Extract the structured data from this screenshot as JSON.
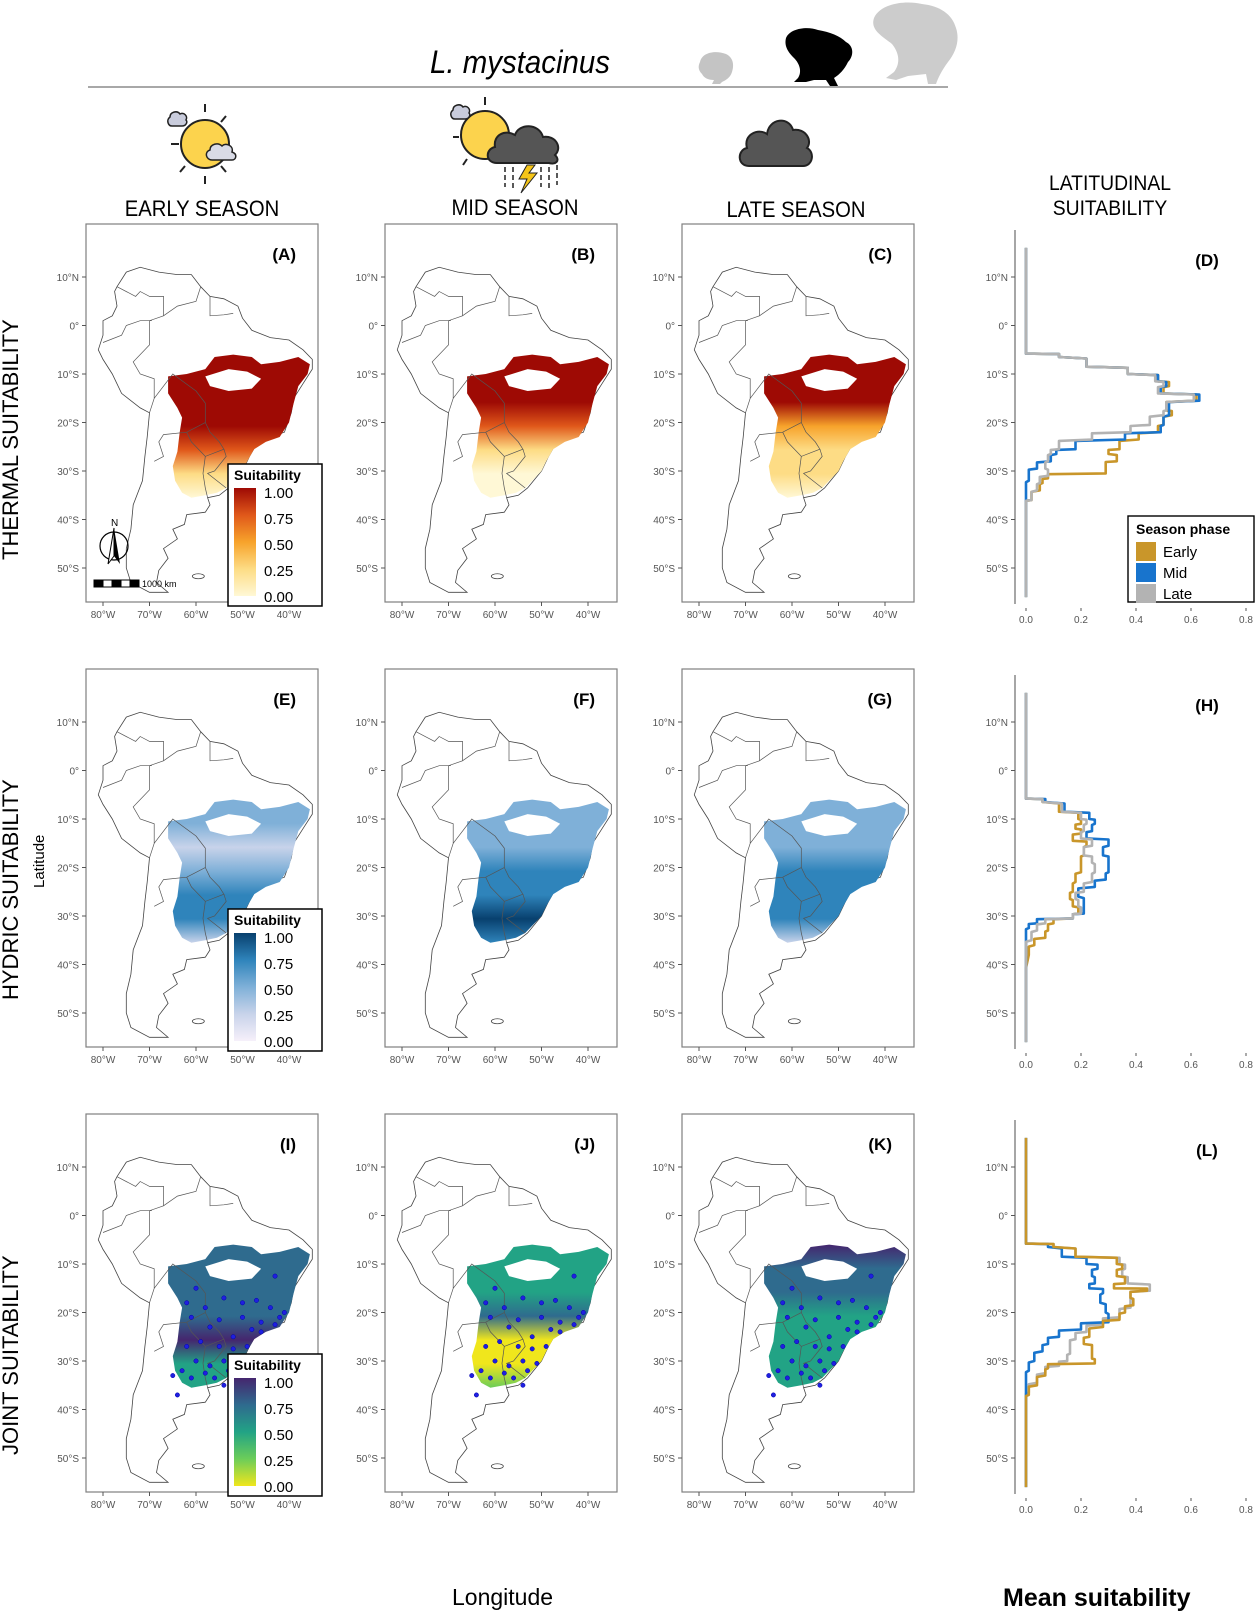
{
  "header": {
    "species": "L. mystacinus",
    "frog_icons": [
      "frog-small-gray",
      "frog-medium-black",
      "frog-large-gray"
    ],
    "columns": [
      {
        "title": "EARLY SEASON",
        "icon": "sun-cloud-icon"
      },
      {
        "title": "MID SEASON",
        "icon": "sun-storm-cloud-icon"
      },
      {
        "title": "LATE SEASON",
        "icon": "dark-cloud-icon"
      }
    ],
    "lat_column_title_line1": "LATITUDINAL",
    "lat_column_title_line2": "SUITABILITY"
  },
  "rows": [
    {
      "label": "THERMAL SUITABILITY",
      "palette": "thermal"
    },
    {
      "label": "HYDRIC SUITABILITY",
      "palette": "hydric"
    },
    {
      "label": "JOINT SUITABILITY",
      "palette": "joint"
    }
  ],
  "axes": {
    "latitude_title": "Latitude",
    "longitude_title": "Longitude",
    "mean_suitability_title": "Mean suitability",
    "lat_ticks": [
      "10°N",
      "0°",
      "10°S",
      "20°S",
      "30°S",
      "40°S",
      "50°S"
    ],
    "lon_ticks": [
      "80°W",
      "70°W",
      "60°W",
      "50°W",
      "40°W"
    ],
    "suit_ticks": [
      "0.0",
      "0.2",
      "0.4",
      "0.6",
      "0.8"
    ]
  },
  "map_panels": [
    {
      "id": "A",
      "label": "(A)",
      "row": 0,
      "col": 0,
      "has_legend": true,
      "has_compass": true
    },
    {
      "id": "B",
      "label": "(B)",
      "row": 0,
      "col": 1
    },
    {
      "id": "C",
      "label": "(C)",
      "row": 0,
      "col": 2
    },
    {
      "id": "E",
      "label": "(E)",
      "row": 1,
      "col": 0,
      "has_legend": true
    },
    {
      "id": "F",
      "label": "(F)",
      "row": 1,
      "col": 1
    },
    {
      "id": "G",
      "label": "(G)",
      "row": 1,
      "col": 2
    },
    {
      "id": "I",
      "label": "(I)",
      "row": 2,
      "col": 0,
      "has_legend": true,
      "has_points": true
    },
    {
      "id": "J",
      "label": "(J)",
      "row": 2,
      "col": 1,
      "has_points": true
    },
    {
      "id": "K",
      "label": "(K)",
      "row": 2,
      "col": 2,
      "has_points": true
    }
  ],
  "legend": {
    "title": "Suitability",
    "ticks": [
      "1.00",
      "0.75",
      "0.50",
      "0.25",
      "0.00"
    ]
  },
  "scale_bar": {
    "label": "1000 km",
    "north": "N"
  },
  "palettes": {
    "thermal": [
      "#fff8d6",
      "#fddc85",
      "#f7a32b",
      "#e0581a",
      "#9e0a04"
    ],
    "hydric": [
      "#f6f0fa",
      "#c8d3ea",
      "#7fb0d8",
      "#2f84bb",
      "#08406e"
    ],
    "joint": [
      "#f0e61c",
      "#6ccd59",
      "#22a385",
      "#2f6b8e",
      "#45266e"
    ]
  },
  "season_legend": {
    "title": "Season phase",
    "items": [
      {
        "label": "Early",
        "color": "#c9962a"
      },
      {
        "label": "Mid",
        "color": "#1874cd"
      },
      {
        "label": "Late",
        "color": "#b3b3b3"
      }
    ]
  },
  "chart_data": [
    {
      "type": "line",
      "panel": "(D)",
      "title": "Thermal suitability by latitude",
      "xlabel": "Mean suitability",
      "ylabel": "Latitude",
      "xlim": [
        0,
        0.8
      ],
      "ylim": [
        -56,
        16
      ],
      "legend": "bottom-right",
      "series": [
        {
          "name": "Early",
          "lat": [
            16,
            -5.8,
            -6.5,
            -8.5,
            -10,
            -11.5,
            -12.5,
            -14,
            -15.5,
            -17.5,
            -18.5,
            -20.5,
            -22,
            -23.5,
            -25.5,
            -26.5,
            -28,
            -29,
            -30.5,
            -31.5,
            -32.5,
            -34,
            -36,
            -37,
            -56
          ],
          "value": [
            0,
            0,
            0.12,
            0.22,
            0.37,
            0.48,
            0.52,
            0.5,
            0.62,
            0.51,
            0.53,
            0.5,
            0.48,
            0.41,
            0.34,
            0.3,
            0.33,
            0.29,
            0.29,
            0.08,
            0.06,
            0.05,
            0.02,
            0,
            0
          ]
        },
        {
          "name": "Mid",
          "lat": [
            16,
            -5.8,
            -6.5,
            -8.5,
            -10,
            -11.5,
            -12.5,
            -14,
            -15.5,
            -17.5,
            -18.5,
            -20.5,
            -22,
            -23.5,
            -25.5,
            -26.5,
            -28,
            -29.5,
            -31,
            -32,
            -34,
            -36,
            -56
          ],
          "value": [
            0,
            0,
            0.12,
            0.22,
            0.37,
            0.48,
            0.51,
            0.49,
            0.63,
            0.52,
            0.52,
            0.5,
            0.49,
            0.36,
            0.18,
            0.11,
            0.09,
            0.04,
            0.01,
            0.01,
            0,
            0,
            0
          ]
        },
        {
          "name": "Late",
          "lat": [
            16,
            -5.8,
            -6.5,
            -8.5,
            -10,
            -11.5,
            -12.5,
            -14,
            -15.5,
            -17.5,
            -18.5,
            -20.5,
            -22,
            -23.5,
            -25.5,
            -26.5,
            -28,
            -29.5,
            -31,
            -32.5,
            -34,
            -36,
            -37,
            -56
          ],
          "value": [
            0,
            0,
            0.12,
            0.22,
            0.37,
            0.47,
            0.5,
            0.48,
            0.61,
            0.51,
            0.5,
            0.45,
            0.38,
            0.24,
            0.12,
            0.09,
            0.08,
            0.07,
            0.08,
            0.05,
            0.04,
            0.02,
            0,
            0
          ]
        }
      ]
    },
    {
      "type": "line",
      "panel": "(H)",
      "title": "Hydric suitability by latitude",
      "xlabel": "Mean suitability",
      "ylabel": "Latitude",
      "xlim": [
        0,
        0.8
      ],
      "ylim": [
        -56,
        16
      ],
      "series": [
        {
          "name": "Early",
          "lat": [
            16,
            -5.8,
            -6.5,
            -8.5,
            -10,
            -11,
            -12,
            -13,
            -14.5,
            -15.5,
            -17.5,
            -19,
            -21,
            -23,
            -25,
            -26.5,
            -28,
            -29.5,
            -30.5,
            -31.5,
            -33,
            -34.5,
            -36,
            -38,
            -56
          ],
          "value": [
            0,
            0,
            0.06,
            0.12,
            0.19,
            0.2,
            0.18,
            0.2,
            0.17,
            0.22,
            0.21,
            0.2,
            0.2,
            0.18,
            0.17,
            0.16,
            0.17,
            0.19,
            0.17,
            0.1,
            0.08,
            0.07,
            0.03,
            0.01,
            0
          ]
        },
        {
          "name": "Mid",
          "lat": [
            16,
            -5.8,
            -6.5,
            -8.5,
            -10,
            -11,
            -12.5,
            -14,
            -15.5,
            -17.5,
            -19,
            -21,
            -22.5,
            -24,
            -26,
            -28,
            -29.5,
            -30.5,
            -31.5,
            -32.5,
            -34,
            -36.5,
            -56
          ],
          "value": [
            0,
            0,
            0.07,
            0.14,
            0.23,
            0.25,
            0.24,
            0.22,
            0.3,
            0.28,
            0.3,
            0.3,
            0.29,
            0.25,
            0.19,
            0.21,
            0.21,
            0.17,
            0.04,
            0.01,
            0,
            0,
            0
          ]
        },
        {
          "name": "Late",
          "lat": [
            16,
            -5.8,
            -6.5,
            -8.5,
            -10,
            -11,
            -12.5,
            -14,
            -15.5,
            -17.5,
            -19,
            -21,
            -23,
            -25,
            -26.5,
            -28,
            -29.5,
            -30.5,
            -31.5,
            -33,
            -35,
            -37,
            -56
          ],
          "value": [
            0,
            0,
            0.06,
            0.13,
            0.2,
            0.22,
            0.21,
            0.2,
            0.24,
            0.21,
            0.24,
            0.25,
            0.24,
            0.21,
            0.18,
            0.19,
            0.2,
            0.17,
            0.07,
            0.04,
            0.02,
            0,
            0
          ]
        }
      ]
    },
    {
      "type": "line",
      "panel": "(L)",
      "title": "Joint suitability by latitude",
      "xlabel": "Mean suitability",
      "ylabel": "Latitude",
      "xlim": [
        0,
        0.8
      ],
      "ylim": [
        -56,
        16
      ],
      "series": [
        {
          "name": "Early",
          "lat": [
            16,
            -5.8,
            -6.5,
            -8.5,
            -10,
            -11,
            -12.5,
            -14,
            -15,
            -15.5,
            -17,
            -18.5,
            -20,
            -21.5,
            -23,
            -25,
            -26.5,
            -28,
            -29.5,
            -30.5,
            -31.5,
            -33,
            -35,
            -37,
            -38.5,
            -56
          ],
          "value": [
            0,
            0,
            0.1,
            0.18,
            0.33,
            0.35,
            0.33,
            0.36,
            0.32,
            0.44,
            0.38,
            0.39,
            0.36,
            0.34,
            0.28,
            0.23,
            0.21,
            0.24,
            0.24,
            0.25,
            0.08,
            0.07,
            0.04,
            0.01,
            0,
            0
          ]
        },
        {
          "name": "Mid",
          "lat": [
            16,
            -5.8,
            -6.5,
            -8.5,
            -10,
            -11,
            -12.5,
            -14,
            -15,
            -16,
            -18,
            -20,
            -22,
            -23.5,
            -25,
            -26.5,
            -28,
            -30,
            -32,
            -34,
            -36.5,
            -56
          ],
          "value": [
            0,
            0,
            0.08,
            0.13,
            0.22,
            0.26,
            0.24,
            0.25,
            0.23,
            0.28,
            0.27,
            0.29,
            0.3,
            0.2,
            0.12,
            0.08,
            0.06,
            0.03,
            0.01,
            0,
            0,
            0
          ]
        },
        {
          "name": "Late",
          "lat": [
            16,
            -5.8,
            -6.5,
            -8.5,
            -10,
            -11,
            -12.5,
            -14,
            -15.5,
            -17,
            -19,
            -21,
            -22.5,
            -24,
            -25.5,
            -27,
            -28.5,
            -30,
            -31,
            -32.5,
            -34.5,
            -36.5,
            -38,
            -56
          ],
          "value": [
            0,
            0,
            0.1,
            0.18,
            0.34,
            0.36,
            0.35,
            0.37,
            0.45,
            0.38,
            0.38,
            0.34,
            0.28,
            0.22,
            0.18,
            0.16,
            0.16,
            0.15,
            0.12,
            0.07,
            0.04,
            0.01,
            0,
            0
          ]
        }
      ]
    }
  ]
}
